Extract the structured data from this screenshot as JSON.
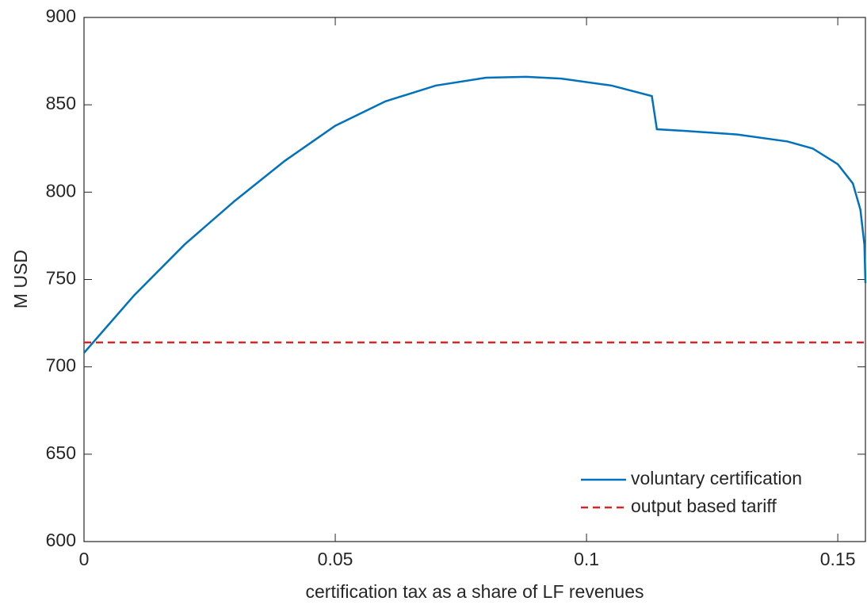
{
  "chart_data": {
    "type": "line",
    "xlabel": "certification tax as a share of LF revenues",
    "ylabel": "M USD",
    "xlim": [
      0,
      0.1555
    ],
    "ylim": [
      600,
      900
    ],
    "xticks": [
      0,
      0.05,
      0.1,
      0.15
    ],
    "yticks": [
      600,
      650,
      700,
      750,
      800,
      850,
      900
    ],
    "legend": "lower right",
    "series": [
      {
        "name": "voluntary certification",
        "color": "#0072bd",
        "style": "solid",
        "x": [
          0,
          0.01,
          0.02,
          0.03,
          0.04,
          0.05,
          0.06,
          0.07,
          0.08,
          0.088,
          0.095,
          0.105,
          0.113,
          0.114,
          0.12,
          0.13,
          0.14,
          0.145,
          0.15,
          0.153,
          0.1545,
          0.1553,
          0.1555
        ],
        "values": [
          708,
          741,
          770,
          795,
          818,
          838,
          852,
          861,
          865.5,
          866,
          865,
          861,
          855,
          836,
          835,
          833,
          829,
          825,
          816,
          805,
          790,
          770,
          748
        ]
      },
      {
        "name": "output based tariff",
        "color": "#d62728",
        "style": "dashed",
        "x": [
          0,
          0.1555
        ],
        "values": [
          714,
          714
        ]
      }
    ]
  }
}
